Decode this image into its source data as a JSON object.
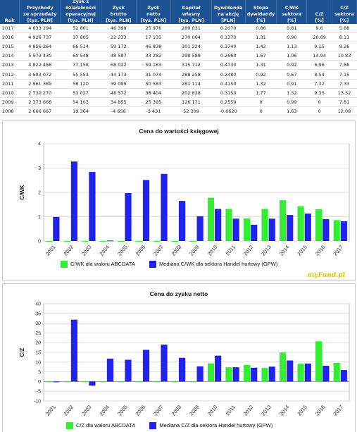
{
  "table": {
    "headers": [
      "Rok",
      "Przychody\nze sprzedaży\n[tys. PLN]",
      "Zysk z\ndziałalności\noperacyjnej\n[tys. PLN]",
      "Zysk\nbrutto\n[tys. PLN]",
      "Zysk\nnetto\n[tys. PLN]",
      "Kapitał własny\n[tys. PLN]",
      "Dywidenda\nna akcję\n[PLN]",
      "Stopa\ndywidendy\n[%]",
      "C/WK\nsektora\n[%]",
      "C/Z\n[%]",
      "C/Z\nsektora\n[%]"
    ],
    "rows": [
      [
        "2017",
        "4 633 294",
        "52 801",
        "46 399",
        "25 976",
        "289 031",
        "0.2070",
        "0.86",
        "0.81",
        "9.6",
        "5.88"
      ],
      [
        "2016",
        "4 926 737",
        "37 805",
        "22 233",
        "17 135",
        "270 064",
        "0.1370",
        "1.31",
        "0.90",
        "20.69",
        "8.11"
      ],
      [
        "2015",
        "4 856 264",
        "66 514",
        "59 172",
        "46 838",
        "301 224",
        "0.3740",
        "1.42",
        "1.13",
        "9.15",
        "9.26"
      ],
      [
        "2014",
        "5 573 430",
        "60 548",
        "48 587",
        "33 282",
        "298 589",
        "0.2660",
        "1.67",
        "1.06",
        "14.94",
        "10.83"
      ],
      [
        "2013",
        "4 822 468",
        "77 158",
        "68 022",
        "59 183",
        "315 712",
        "0.4730",
        "1.31",
        "0.92",
        "6.96",
        "7.66"
      ],
      [
        "2012",
        "3 693 072",
        "55 554",
        "44 173",
        "31 074",
        "288 258",
        "0.2480",
        "0.92",
        "0.67",
        "8.54",
        "7.15"
      ],
      [
        "2011",
        "2 961 389",
        "58 120",
        "39 089",
        "50 583",
        "281 114",
        "0.4150",
        "1.32",
        "0.91",
        "7.32",
        "7.33"
      ],
      [
        "2010",
        "2 730 270",
        "53 027",
        "48 572",
        "38 404",
        "202 828",
        "0.3150",
        "1.77",
        "1.32",
        "9.35",
        "13.32"
      ],
      [
        "2009",
        "2 373 668",
        "54 103",
        "34 855",
        "25 395",
        "126 171",
        "0.2550",
        "0",
        "0.99",
        "0",
        "7.81"
      ],
      [
        "2008",
        "2 666 667",
        "19 364",
        "-4 656",
        "-3 431",
        "52 309",
        "-0.0620",
        "0",
        "1.63",
        "0",
        "12.08"
      ]
    ]
  },
  "legend": {
    "green": "#33ee33",
    "blue": "#2222ee"
  },
  "chart_data": [
    {
      "type": "bar",
      "title": "Cena do wartości księgowej",
      "ylabel": "C/WK",
      "xlabel": "",
      "ylim": [
        0,
        4
      ],
      "yticks": [
        0,
        1,
        2,
        3,
        4
      ],
      "grid": true,
      "legend_position": "bottom",
      "categories": [
        "2001",
        "2002",
        "2003",
        "2004",
        "2005",
        "2006",
        "2007",
        "2008",
        "2009",
        "2010",
        "2011",
        "2012",
        "2013",
        "2014",
        "2015",
        "2016",
        "2017"
      ],
      "series": [
        {
          "name": "C/WK dla waloru ABCDATA",
          "color": "#33ee33",
          "values": [
            0,
            0,
            0,
            0,
            0,
            0,
            0,
            0,
            0,
            1.78,
            1.32,
            0.93,
            1.32,
            1.68,
            1.43,
            1.31,
            0.86
          ]
        },
        {
          "name": "Mediana C/WK dla sektora Handel hurtowy (GPW)",
          "color": "#2222ee",
          "values": [
            0.99,
            3.27,
            2.84,
            0.02,
            1.97,
            2.51,
            2.76,
            1.65,
            1.02,
            1.32,
            0.92,
            0.67,
            0.92,
            1.07,
            1.13,
            0.9,
            0.81
          ]
        }
      ],
      "logo": "myFund.pl"
    },
    {
      "type": "bar",
      "title": "Cena do zysku netto",
      "ylabel": "C/Z",
      "xlabel": "",
      "ylim": [
        -10,
        40
      ],
      "yticks": [
        -10,
        -5,
        0,
        5,
        10,
        15,
        20,
        25,
        30,
        35,
        40
      ],
      "grid": true,
      "legend_position": "bottom",
      "categories": [
        "2001",
        "2002",
        "2003",
        "2004",
        "2005",
        "2006",
        "2007",
        "2008",
        "2009",
        "2010",
        "2011",
        "2012",
        "2013",
        "2014",
        "2015",
        "2016",
        "2017"
      ],
      "series": [
        {
          "name": "C/Z dla waloru ABCDATA",
          "color": "#33ee33",
          "values": [
            0,
            0,
            0,
            0,
            0,
            0,
            0,
            0,
            0,
            9.35,
            7.32,
            8.54,
            6.96,
            14.94,
            9.15,
            20.69,
            9.6
          ]
        },
        {
          "name": "Mediana C/Z dla sektora Handel hurtowy (GPW)",
          "color": "#2222ee",
          "values": [
            0,
            31.8,
            -2.1,
            11.8,
            11.2,
            16.3,
            19.0,
            12.2,
            7.8,
            13.32,
            7.33,
            7.15,
            7.66,
            10.83,
            9.26,
            8.11,
            5.88
          ]
        }
      ]
    }
  ]
}
